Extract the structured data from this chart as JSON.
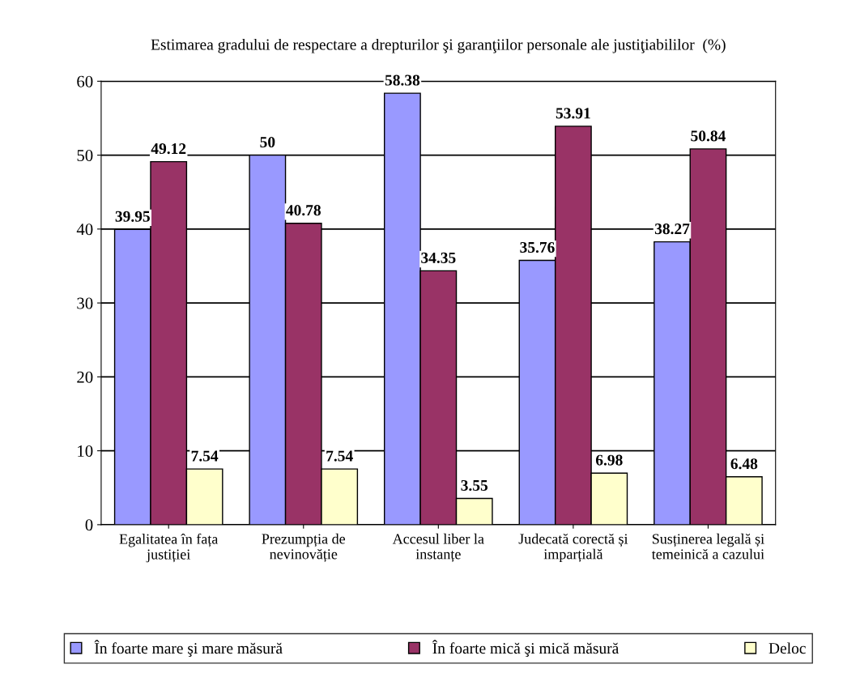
{
  "chart_data": {
    "type": "bar",
    "title": "Estimarea gradului de respectare a drepturilor şi garanţiilor personale ale justiţiabililor  (%)",
    "categories": [
      "Egalitatea în fața justiției",
      "Prezumpția de nevinovăție",
      "Accesul liber la instanțe",
      "Judecată corectă și imparțială",
      "Susținerea legală și temeinică a cazului"
    ],
    "series": [
      {
        "name": "În foarte mare şi mare măsură",
        "color": "#9999ff",
        "values": [
          39.95,
          50,
          58.38,
          35.76,
          38.27
        ]
      },
      {
        "name": "În foarte mică şi mică măsură",
        "color": "#993366",
        "values": [
          49.12,
          40.78,
          34.35,
          53.91,
          50.84
        ]
      },
      {
        "name": "Deloc",
        "color": "#ffffcc",
        "values": [
          7.54,
          7.54,
          3.55,
          6.98,
          6.48
        ]
      }
    ],
    "ylim": [
      0,
      60
    ],
    "yticks": [
      0,
      10,
      20,
      30,
      40,
      50,
      60
    ],
    "grid": "y",
    "legend": "bottom",
    "data_labels": true
  }
}
